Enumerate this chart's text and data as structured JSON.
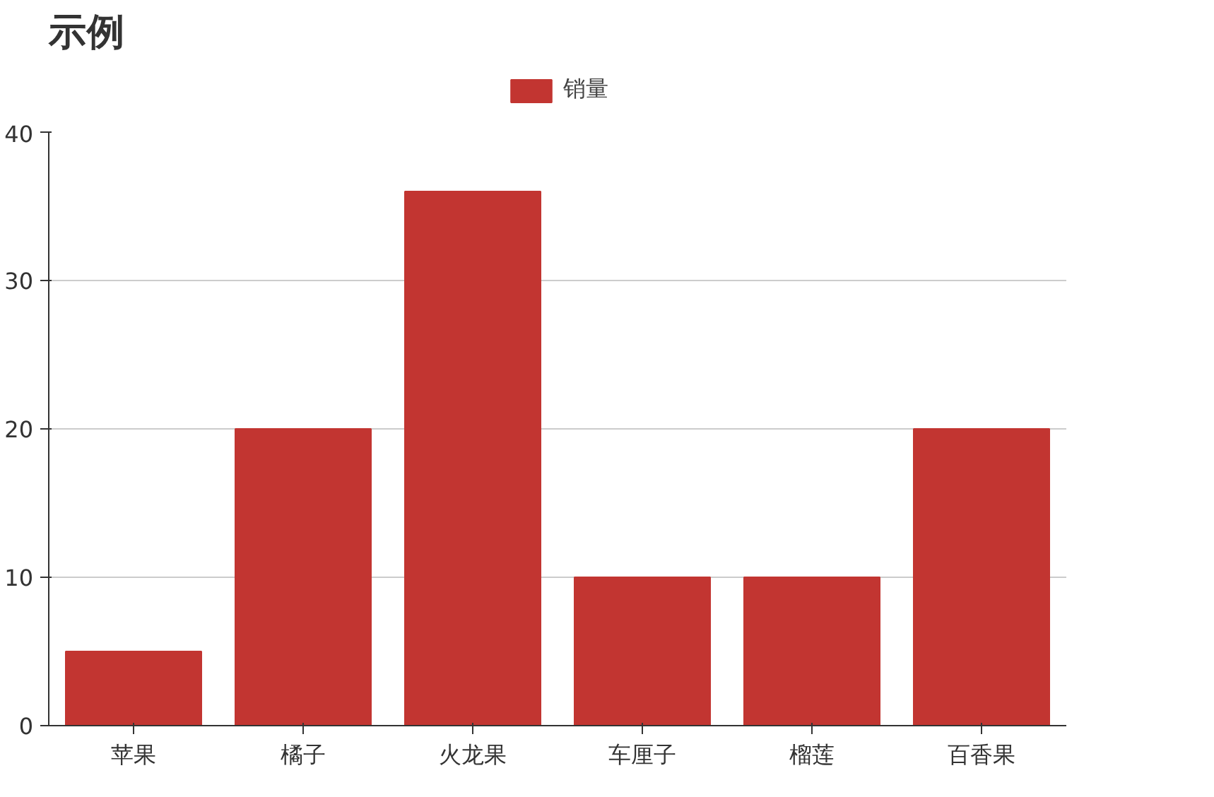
{
  "chart_data": {
    "type": "bar",
    "title": "示例",
    "categories": [
      "苹果",
      "橘子",
      "火龙果",
      "车厘子",
      "榴莲",
      "百香果"
    ],
    "series": [
      {
        "name": "销量",
        "color": "#c23531",
        "values": [
          5,
          20,
          36,
          10,
          10,
          20
        ]
      }
    ],
    "ylim": [
      0,
      40
    ],
    "yticks": [
      0,
      10,
      20,
      30,
      40
    ],
    "grid": "y",
    "legend": "top"
  }
}
